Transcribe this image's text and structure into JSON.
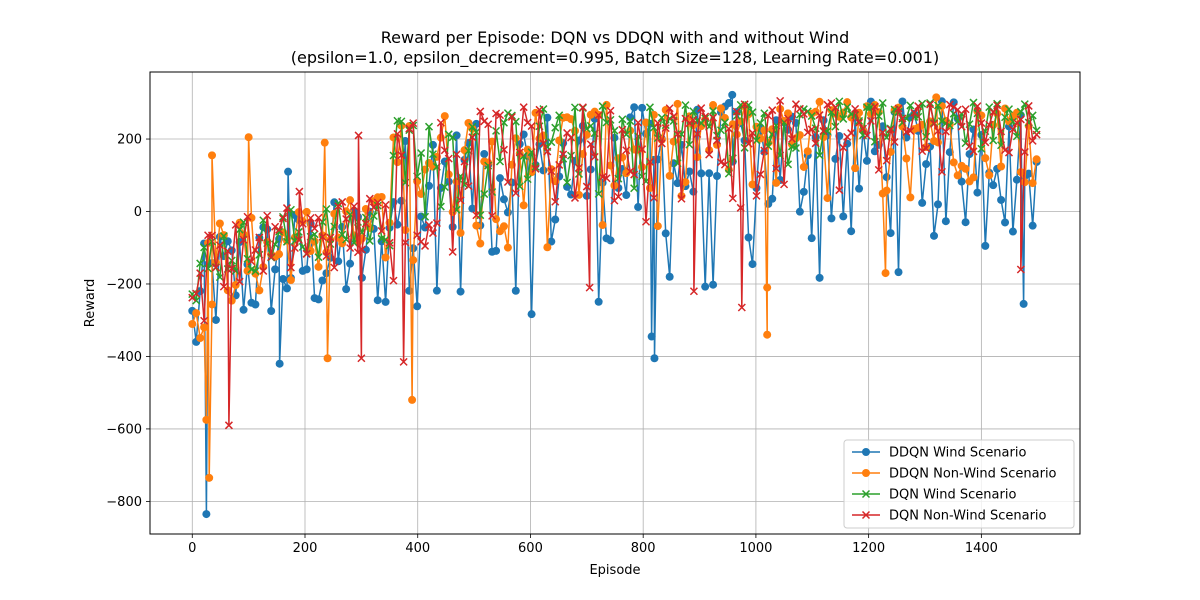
{
  "chart_data": {
    "type": "line",
    "title": "Reward per Episode: DQN vs DDQN with and without Wind",
    "subtitle": "(epsilon=1.0, epsilon_decrement=0.995, Batch Size=128, Learning Rate=0.001)",
    "xlabel": "Episode",
    "ylabel": "Reward",
    "xlim": [
      -75,
      1575
    ],
    "ylim": [
      -890,
      385
    ],
    "xticks": [
      0,
      200,
      400,
      600,
      800,
      1000,
      1200,
      1400
    ],
    "yticks": [
      -800,
      -600,
      -400,
      -200,
      0,
      200
    ],
    "grid": true,
    "legend_position": "lower-right",
    "series": [
      {
        "name": "DDQN Wind Scenario",
        "color": "#1f77b4",
        "marker": "circle",
        "phases": [
          {
            "x": [
              0,
              30
            ],
            "low": [
              -510,
              -300
            ],
            "high": [
              -150,
              -60
            ]
          },
          {
            "x": [
              30,
              160
            ],
            "low": [
              -360,
              -300
            ],
            "high": [
              -40,
              10
            ]
          },
          {
            "x": [
              160,
              350
            ],
            "low": [
              -300,
              -280
            ],
            "high": [
              10,
              60
            ]
          },
          {
            "x": [
              350,
              600
            ],
            "low": [
              -320,
              -280
            ],
            "high": [
              200,
              270
            ]
          },
          {
            "x": [
              600,
              900
            ],
            "low": [
              -330,
              -300
            ],
            "high": [
              280,
              300
            ]
          },
          {
            "x": [
              900,
              1200
            ],
            "low": [
              -280,
              -200
            ],
            "high": [
              300,
              310
            ]
          },
          {
            "x": [
              1200,
              1500
            ],
            "low": [
              -200,
              -100
            ],
            "high": [
              310,
              300
            ]
          }
        ],
        "outliers": [
          [
            25,
            -835
          ],
          [
            155,
            -420
          ],
          [
            820,
            -405
          ],
          [
            815,
            -345
          ],
          [
            1475,
            -255
          ],
          [
            170,
            110
          ],
          [
            958,
            322
          ]
        ]
      },
      {
        "name": "DDQN Non-Wind Scenario",
        "color": "#ff7f0e",
        "marker": "circle",
        "phases": [
          {
            "x": [
              0,
              30
            ],
            "low": [
              -450,
              -280
            ],
            "high": [
              -120,
              -60
            ]
          },
          {
            "x": [
              30,
              160
            ],
            "low": [
              -280,
              -220
            ],
            "high": [
              -20,
              0
            ]
          },
          {
            "x": [
              160,
              350
            ],
            "low": [
              -200,
              -150
            ],
            "high": [
              20,
              50
            ]
          },
          {
            "x": [
              350,
              600
            ],
            "low": [
              -200,
              -100
            ],
            "high": [
              270,
              290
            ]
          },
          {
            "x": [
              600,
              900
            ],
            "low": [
              -150,
              -50
            ],
            "high": [
              290,
              300
            ]
          },
          {
            "x": [
              900,
              1200
            ],
            "low": [
              -50,
              50
            ],
            "high": [
              300,
              310
            ]
          },
          {
            "x": [
              1200,
              1500
            ],
            "low": [
              0,
              80
            ],
            "high": [
              310,
              300
            ]
          }
        ],
        "outliers": [
          [
            30,
            -735
          ],
          [
            25,
            -575
          ],
          [
            390,
            -520
          ],
          [
            240,
            -405
          ],
          [
            1020,
            -340
          ],
          [
            1020,
            -210
          ],
          [
            1230,
            -170
          ],
          [
            100,
            205
          ],
          [
            35,
            155
          ],
          [
            235,
            190
          ],
          [
            1320,
            315
          ]
        ]
      },
      {
        "name": "DQN Wind Scenario",
        "color": "#2ca02c",
        "marker": "x",
        "phases": [
          {
            "x": [
              0,
              30
            ],
            "low": [
              -400,
              -250
            ],
            "high": [
              -100,
              -50
            ]
          },
          {
            "x": [
              30,
              160
            ],
            "low": [
              -200,
              -150
            ],
            "high": [
              -30,
              0
            ]
          },
          {
            "x": [
              160,
              350
            ],
            "low": [
              -150,
              -100
            ],
            "high": [
              10,
              40
            ]
          },
          {
            "x": [
              350,
              600
            ],
            "low": [
              -100,
              0
            ],
            "high": [
              260,
              280
            ]
          },
          {
            "x": [
              600,
              900
            ],
            "low": [
              0,
              80
            ],
            "high": [
              290,
              300
            ]
          },
          {
            "x": [
              900,
              1200
            ],
            "low": [
              80,
              150
            ],
            "high": [
              300,
              310
            ]
          },
          {
            "x": [
              1200,
              1500
            ],
            "low": [
              150,
              180
            ],
            "high": [
              310,
              300
            ]
          }
        ],
        "outliers": []
      },
      {
        "name": "DQN Non-Wind Scenario",
        "color": "#d62728",
        "marker": "x",
        "phases": [
          {
            "x": [
              0,
              30
            ],
            "low": [
              -420,
              -280
            ],
            "high": [
              -100,
              -40
            ]
          },
          {
            "x": [
              30,
              160
            ],
            "low": [
              -220,
              -160
            ],
            "high": [
              -30,
              10
            ]
          },
          {
            "x": [
              160,
              350
            ],
            "low": [
              -200,
              -120
            ],
            "high": [
              20,
              60
            ]
          },
          {
            "x": [
              350,
              600
            ],
            "low": [
              -200,
              -50
            ],
            "high": [
              260,
              290
            ]
          },
          {
            "x": [
              600,
              900
            ],
            "low": [
              -150,
              0
            ],
            "high": [
              290,
              305
            ]
          },
          {
            "x": [
              900,
              1200
            ],
            "low": [
              -50,
              80
            ],
            "high": [
              300,
              315
            ]
          },
          {
            "x": [
              1200,
              1500
            ],
            "low": [
              50,
              150
            ],
            "high": [
              315,
              300
            ]
          }
        ],
        "outliers": [
          [
            65,
            -590
          ],
          [
            375,
            -415
          ],
          [
            300,
            -405
          ],
          [
            975,
            -265
          ],
          [
            890,
            -220
          ],
          [
            705,
            -210
          ],
          [
            1470,
            -160
          ],
          [
            295,
            210
          ],
          [
            190,
            55
          ]
        ]
      }
    ]
  }
}
